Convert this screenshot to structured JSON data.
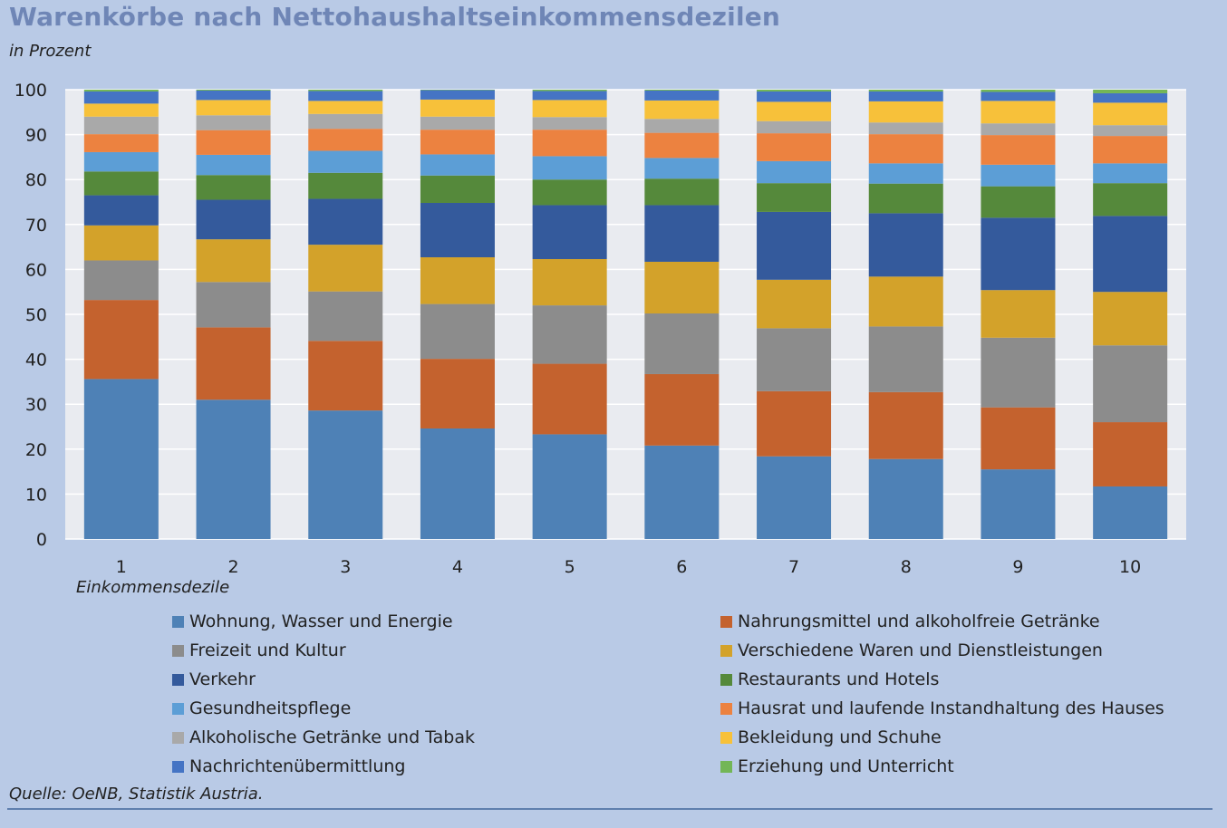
{
  "header": {
    "title": "Warenkörbe nach Nettohaushaltseinkommensdezilen",
    "subtitle": "in Prozent"
  },
  "footer": {
    "source": "Quelle: OeNB, Statistik Austria."
  },
  "chart_data": {
    "type": "bar",
    "stacked": true,
    "title": "Warenkörbe nach Nettohaushaltseinkommensdezilen",
    "ylabel": "in Prozent",
    "xlabel": "Einkommensdezile",
    "ylim": [
      0,
      100
    ],
    "yticks": [
      0,
      10,
      20,
      30,
      40,
      50,
      60,
      70,
      80,
      90,
      100
    ],
    "grid": true,
    "legend_position": "bottom",
    "categories": [
      "1",
      "2",
      "3",
      "4",
      "5",
      "6",
      "7",
      "8",
      "9",
      "10"
    ],
    "series": [
      {
        "name": "Wohnung, Wasser und Energie",
        "color": "#4e81b6",
        "values": [
          35.6,
          31.0,
          28.6,
          24.6,
          23.3,
          20.8,
          18.4,
          17.8,
          15.5,
          11.7
        ]
      },
      {
        "name": "Nahrungsmittel und alkoholfreie Getränke",
        "color": "#c4622e",
        "values": [
          17.6,
          16.1,
          15.5,
          15.5,
          15.7,
          15.9,
          14.5,
          14.9,
          13.8,
          14.3
        ]
      },
      {
        "name": "Freizeit und Kultur",
        "color": "#8c8c8c",
        "values": [
          8.8,
          10.1,
          11.0,
          12.2,
          13.0,
          13.5,
          14.0,
          14.6,
          15.5,
          17.1
        ]
      },
      {
        "name": "Verschiedene Waren und Dienstleistungen",
        "color": "#d3a22a",
        "values": [
          7.8,
          9.5,
          10.4,
          10.4,
          10.3,
          11.5,
          10.8,
          11.1,
          10.6,
          11.9
        ]
      },
      {
        "name": "Verkehr",
        "color": "#345a9c",
        "values": [
          6.7,
          8.8,
          10.2,
          12.1,
          12.0,
          12.6,
          15.1,
          14.1,
          16.1,
          16.9
        ]
      },
      {
        "name": "Restaurants und Hotels",
        "color": "#55893b",
        "values": [
          5.3,
          5.5,
          5.8,
          6.1,
          5.7,
          5.9,
          6.4,
          6.6,
          7.0,
          7.3
        ]
      },
      {
        "name": "Gesundheitspflege",
        "color": "#5c9ed6",
        "values": [
          4.3,
          4.5,
          4.9,
          4.7,
          5.2,
          4.6,
          4.9,
          4.5,
          4.8,
          4.4
        ]
      },
      {
        "name": "Hausrat und laufende Instandhaltung des Hauses",
        "color": "#ec8240",
        "values": [
          4.0,
          5.5,
          4.9,
          5.5,
          5.9,
          5.6,
          6.2,
          6.5,
          6.6,
          6.1
        ]
      },
      {
        "name": "Alkoholische Getränke und Tabak",
        "color": "#a9a9a9",
        "values": [
          3.9,
          3.3,
          3.3,
          2.9,
          2.8,
          3.1,
          2.7,
          2.6,
          2.6,
          2.4
        ]
      },
      {
        "name": "Bekleidung und Schuhe",
        "color": "#f7c13a",
        "values": [
          2.9,
          3.4,
          2.9,
          3.8,
          3.8,
          4.1,
          4.3,
          4.7,
          5.0,
          5.0
        ]
      },
      {
        "name": "Nachrichtenübermittlung",
        "color": "#4574c4",
        "values": [
          2.7,
          2.1,
          2.2,
          2.1,
          2.0,
          2.2,
          2.3,
          2.2,
          2.0,
          2.1
        ]
      },
      {
        "name": "Erziehung und Unterricht",
        "color": "#73b657",
        "values": [
          0.4,
          0.2,
          0.3,
          0.1,
          0.3,
          0.2,
          0.4,
          0.4,
          0.5,
          0.8
        ]
      }
    ]
  }
}
